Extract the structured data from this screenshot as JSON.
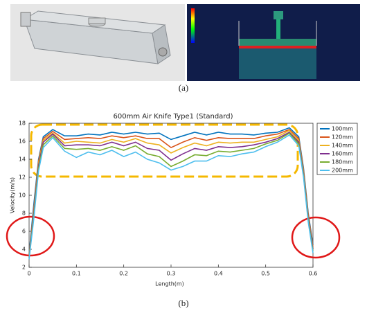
{
  "figure": {
    "caption_a": "(a)",
    "caption_b": "(b)"
  },
  "chart_data": {
    "type": "line",
    "title": "600mm Air Knife Type1 (Standard)",
    "x_label": "Length(m)",
    "y_label": "Velocity(m/s)",
    "x": [
      0,
      0.01,
      0.02,
      0.03,
      0.05,
      0.075,
      0.1,
      0.125,
      0.15,
      0.175,
      0.2,
      0.225,
      0.25,
      0.275,
      0.3,
      0.325,
      0.35,
      0.375,
      0.4,
      0.425,
      0.45,
      0.475,
      0.5,
      0.525,
      0.55,
      0.57,
      0.58,
      0.59,
      0.6
    ],
    "series": [
      {
        "name": "100mm",
        "color": "#0072BD",
        "values": [
          3.5,
          9,
          14,
          16.5,
          17.3,
          16.6,
          16.6,
          16.8,
          16.7,
          17,
          16.8,
          17,
          16.8,
          16.9,
          16.2,
          16.6,
          17,
          16.7,
          17,
          16.8,
          16.8,
          16.7,
          16.9,
          17,
          17.5,
          16.5,
          13,
          8,
          4.5
        ]
      },
      {
        "name": "120mm",
        "color": "#D95319",
        "values": [
          3.3,
          8.5,
          13.8,
          16.3,
          17.1,
          16.2,
          16.3,
          16.4,
          16.3,
          16.6,
          16.4,
          16.6,
          16.3,
          16.3,
          15.3,
          15.9,
          16.4,
          16.1,
          16.4,
          16.3,
          16.3,
          16.3,
          16.6,
          16.8,
          17.3,
          16.3,
          12.8,
          7.8,
          4.3
        ]
      },
      {
        "name": "140mm",
        "color": "#EDB120",
        "values": [
          3.2,
          8.2,
          13.6,
          16.1,
          16.9,
          15.8,
          16,
          15.9,
          15.8,
          16.2,
          15.9,
          16.3,
          15.8,
          15.6,
          14.7,
          15.3,
          15.8,
          15.5,
          15.9,
          15.8,
          15.9,
          15.9,
          16.2,
          16.5,
          17.2,
          16.1,
          12.6,
          7.6,
          4.1
        ]
      },
      {
        "name": "160mm",
        "color": "#7E2F8E",
        "values": [
          3.1,
          8,
          13.3,
          15.9,
          16.8,
          15.5,
          15.6,
          15.6,
          15.5,
          15.9,
          15.5,
          15.9,
          15.2,
          15,
          13.9,
          14.6,
          15.2,
          15,
          15.4,
          15.3,
          15.4,
          15.6,
          15.9,
          16.3,
          17,
          15.9,
          12.4,
          7.4,
          4
        ]
      },
      {
        "name": "180mm",
        "color": "#77AC30",
        "values": [
          3,
          7.7,
          13,
          15.6,
          16.6,
          15.2,
          15.1,
          15.2,
          15,
          15.4,
          15,
          15.5,
          14.6,
          14.3,
          13.2,
          13.8,
          14.5,
          14.4,
          14.9,
          14.8,
          15,
          15.2,
          15.7,
          16.1,
          16.9,
          15.7,
          12.2,
          7.2,
          3.8
        ]
      },
      {
        "name": "200mm",
        "color": "#4DBEEE",
        "values": [
          2.9,
          7.4,
          12.7,
          15.3,
          16.4,
          14.9,
          14.2,
          14.8,
          14.5,
          15,
          14.3,
          14.8,
          14,
          13.6,
          12.8,
          13.2,
          13.8,
          13.8,
          14.4,
          14.3,
          14.6,
          14.8,
          15.4,
          15.9,
          16.7,
          15.5,
          12,
          7,
          3.6
        ]
      }
    ],
    "xlim": [
      0,
      0.6
    ],
    "xticks": [
      0,
      0.1,
      0.2,
      0.3,
      0.4,
      0.5,
      0.6
    ],
    "ylim": [
      2,
      18
    ],
    "yticks": [
      2,
      4,
      6,
      8,
      10,
      12,
      14,
      16,
      18
    ]
  }
}
